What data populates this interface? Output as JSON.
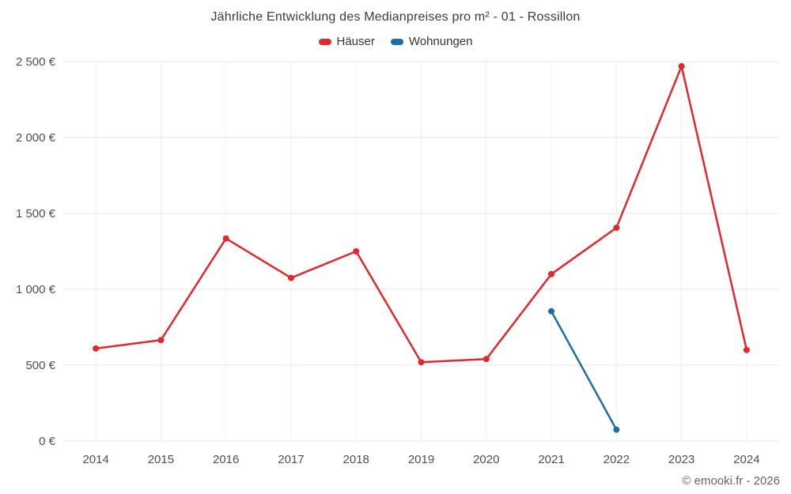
{
  "header": {
    "title": "Jährliche Entwicklung des Medianpreises pro m² - 01 - Rossillon"
  },
  "legend": [
    {
      "label": "Häuser",
      "color": "#e0282e"
    },
    {
      "label": "Wohnungen",
      "color": "#1c6ea4"
    }
  ],
  "footer": {
    "credit": "© emooki.fr - 2026"
  },
  "colors": {
    "grid_horizontal": "#e6e6e6",
    "grid_vertical": "#f0f0f0",
    "tick_text": "#4f4f4f",
    "series_hauser": "#e0282e",
    "series_wohnungen": "#1c6ea4"
  },
  "chart_data": {
    "type": "line",
    "title": "Jährliche Entwicklung des Medianpreises pro m² - 01 - Rossillon",
    "xlabel": "",
    "ylabel": "",
    "categories": [
      "2014",
      "2015",
      "2016",
      "2017",
      "2018",
      "2019",
      "2020",
      "2021",
      "2022",
      "2023",
      "2024"
    ],
    "series": [
      {
        "name": "Häuser",
        "color": "#e0282e",
        "values": [
          610,
          665,
          1335,
          1075,
          1250,
          520,
          540,
          1100,
          1405,
          2470,
          600
        ]
      },
      {
        "name": "Wohnungen",
        "color": "#1c6ea4",
        "values": [
          null,
          null,
          null,
          null,
          null,
          null,
          null,
          855,
          75,
          null,
          null
        ]
      }
    ],
    "ylim": [
      0,
      2500
    ],
    "ytick_values": [
      0,
      500,
      1000,
      1500,
      2000,
      2500
    ],
    "ytick_labels": [
      "0 €",
      "500 €",
      "1 000 €",
      "1 500 €",
      "2 000 €",
      "2 500 €"
    ],
    "grid": true,
    "legend_position": "top"
  }
}
